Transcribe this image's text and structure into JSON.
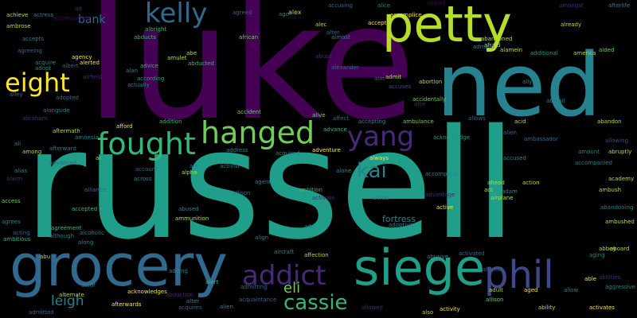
{
  "colors": {
    "background": "#000000",
    "palette": [
      "#440154",
      "#482878",
      "#3e4989",
      "#31688e",
      "#26828e",
      "#1f9e89",
      "#35b779",
      "#6ece58",
      "#b5de2b",
      "#fde725"
    ]
  },
  "words": [
    {
      "text": "luke",
      "color": "#440154"
    },
    {
      "text": "russell",
      "color": "#1f9e89"
    },
    {
      "text": "ned",
      "color": "#26828e"
    },
    {
      "text": "petty",
      "color": "#b5de2b"
    },
    {
      "text": "grocery",
      "color": "#31688e"
    },
    {
      "text": "siege",
      "color": "#1f9e89"
    },
    {
      "text": "hanged",
      "color": "#6ece58"
    },
    {
      "text": "fought",
      "color": "#35b779"
    },
    {
      "text": "kelly",
      "color": "#31688e"
    },
    {
      "text": "eight",
      "color": "#fde725"
    },
    {
      "text": "yang",
      "color": "#482878"
    },
    {
      "text": "phil",
      "color": "#3e4989"
    },
    {
      "text": "addict",
      "color": "#482878"
    },
    {
      "text": "kai",
      "color": "#26828e"
    },
    {
      "text": "cassie",
      "color": "#35b779"
    },
    {
      "text": "eli",
      "color": "#6ece58"
    },
    {
      "text": "leigh",
      "color": "#26828e"
    },
    {
      "text": "bank",
      "color": "#31688e"
    },
    {
      "text": "achieve",
      "color": "#b5de2b"
    },
    {
      "text": "actress",
      "color": "#26828e"
    },
    {
      "text": "ad",
      "color": "#482878"
    },
    {
      "text": "agreed",
      "color": "#31688e"
    },
    {
      "text": "ago",
      "color": "#26828e"
    },
    {
      "text": "alex",
      "color": "#b5de2b"
    },
    {
      "text": "accusing",
      "color": "#31688e"
    },
    {
      "text": "alice",
      "color": "#26828e"
    },
    {
      "text": "airport",
      "color": "#440154"
    },
    {
      "text": "amongst",
      "color": "#482878"
    },
    {
      "text": "afterlife",
      "color": "#26828e"
    },
    {
      "text": "ambrose",
      "color": "#b5de2b"
    },
    {
      "text": "accompanied",
      "color": "#440154"
    },
    {
      "text": "albright",
      "color": "#35b779"
    },
    {
      "text": "alec",
      "color": "#b5de2b"
    },
    {
      "text": "accomplice",
      "color": "#fde725"
    },
    {
      "text": "already",
      "color": "#b5de2b"
    },
    {
      "text": "accepts",
      "color": "#26828e"
    },
    {
      "text": "abducts",
      "color": "#35b779"
    },
    {
      "text": "african",
      "color": "#6ece58"
    },
    {
      "text": "alter",
      "color": "#31688e"
    },
    {
      "text": "accept",
      "color": "#fde725"
    },
    {
      "text": "abandoned",
      "color": "#b5de2b"
    },
    {
      "text": "afraid",
      "color": "#b5de2b"
    },
    {
      "text": "agreeing",
      "color": "#31688e"
    },
    {
      "text": "almost",
      "color": "#26828e"
    },
    {
      "text": "admiral",
      "color": "#26828e"
    },
    {
      "text": "alamein",
      "color": "#b5de2b"
    },
    {
      "text": "aided",
      "color": "#6ece58"
    },
    {
      "text": "acquire",
      "color": "#26828e"
    },
    {
      "text": "agency",
      "color": "#fde725"
    },
    {
      "text": "abe",
      "color": "#b5de2b"
    },
    {
      "text": "additional",
      "color": "#1f9e89"
    },
    {
      "text": "america",
      "color": "#b5de2b"
    },
    {
      "text": "adopt",
      "color": "#26828e"
    },
    {
      "text": "albert",
      "color": "#31688e"
    },
    {
      "text": "alerted",
      "color": "#fde725"
    },
    {
      "text": "amulet",
      "color": "#b5de2b"
    },
    {
      "text": "abuse",
      "color": "#482878"
    },
    {
      "text": "airfield",
      "color": "#482878"
    },
    {
      "text": "alan",
      "color": "#26828e"
    },
    {
      "text": "advice",
      "color": "#35b779"
    },
    {
      "text": "abducted",
      "color": "#35b779"
    },
    {
      "text": "alexander",
      "color": "#31688e"
    },
    {
      "text": "aim",
      "color": "#31688e"
    },
    {
      "text": "admit",
      "color": "#b5de2b"
    },
    {
      "text": "accuses",
      "color": "#3e4989"
    },
    {
      "text": "abortion",
      "color": "#b5de2b"
    },
    {
      "text": "ally",
      "color": "#26828e"
    },
    {
      "text": "abigail",
      "color": "#26828e"
    },
    {
      "text": "according",
      "color": "#1f9e89"
    },
    {
      "text": "actually",
      "color": "#26828e"
    },
    {
      "text": "alley",
      "color": "#31688e"
    },
    {
      "text": "adopted",
      "color": "#31688e"
    },
    {
      "text": "accidentally",
      "color": "#6ece58"
    },
    {
      "text": "allie",
      "color": "#482878"
    },
    {
      "text": "abraham",
      "color": "#482878"
    },
    {
      "text": "alongside",
      "color": "#26828e"
    },
    {
      "text": "accident",
      "color": "#6ece58"
    },
    {
      "text": "alive",
      "color": "#6ece58"
    },
    {
      "text": "affect",
      "color": "#31688e"
    },
    {
      "text": "accepting",
      "color": "#26828e"
    },
    {
      "text": "ambulance",
      "color": "#6ece58"
    },
    {
      "text": "acid",
      "color": "#b5de2b"
    },
    {
      "text": "abandon",
      "color": "#b5de2b"
    },
    {
      "text": "aftermath",
      "color": "#b5de2b"
    },
    {
      "text": "afford",
      "color": "#fde725"
    },
    {
      "text": "addition",
      "color": "#35b779"
    },
    {
      "text": "acknowledge",
      "color": "#1f9e89"
    },
    {
      "text": "allows",
      "color": "#31688e"
    },
    {
      "text": "alien",
      "color": "#31688e"
    },
    {
      "text": "among",
      "color": "#b5de2b"
    },
    {
      "text": "amnesia",
      "color": "#26828e"
    },
    {
      "text": "advance",
      "color": "#35b779"
    },
    {
      "text": "ambassador",
      "color": "#31688e"
    },
    {
      "text": "allowing",
      "color": "#3e4989"
    },
    {
      "text": "ali",
      "color": "#26828e"
    },
    {
      "text": "afterward",
      "color": "#26828e"
    },
    {
      "text": "address",
      "color": "#26828e"
    },
    {
      "text": "adventure",
      "color": "#fde725"
    },
    {
      "text": "amount",
      "color": "#26828e"
    },
    {
      "text": "abruptly",
      "color": "#b5de2b"
    },
    {
      "text": "always",
      "color": "#fde725"
    },
    {
      "text": "acquired",
      "color": "#26828e"
    },
    {
      "text": "accused",
      "color": "#26828e"
    },
    {
      "text": "advanced",
      "color": "#31688e"
    },
    {
      "text": "ai",
      "color": "#b5de2b"
    },
    {
      "text": "account",
      "color": "#31688e"
    },
    {
      "text": "activist",
      "color": "#26828e"
    },
    {
      "text": "alpha",
      "color": "#b5de2b"
    },
    {
      "text": "aid",
      "color": "#26828e"
    },
    {
      "text": "accompanied",
      "color": "#26828e"
    },
    {
      "text": "academy",
      "color": "#b5de2b"
    },
    {
      "text": "alias",
      "color": "#26828e"
    },
    {
      "text": "alone",
      "color": "#26828e"
    },
    {
      "text": "alarm",
      "color": "#482878"
    },
    {
      "text": "agent",
      "color": "#26828e"
    },
    {
      "text": "across",
      "color": "#26828e"
    },
    {
      "text": "accompany",
      "color": "#26828e"
    },
    {
      "text": "ahead",
      "color": "#b5de2b"
    },
    {
      "text": "action",
      "color": "#b5de2b"
    },
    {
      "text": "ambush",
      "color": "#b5de2b"
    },
    {
      "text": "alliance",
      "color": "#31688e"
    },
    {
      "text": "allison",
      "color": "#26828e"
    },
    {
      "text": "ambition",
      "color": "#35b779"
    },
    {
      "text": "activate",
      "color": "#482878"
    },
    {
      "text": "act",
      "color": "#b5de2b"
    },
    {
      "text": "adam",
      "color": "#26828e"
    },
    {
      "text": "abandoning",
      "color": "#26828e"
    },
    {
      "text": "access",
      "color": "#6ece58"
    },
    {
      "text": "alfred",
      "color": "#26828e"
    },
    {
      "text": "advantage",
      "color": "#482878"
    },
    {
      "text": "airplane",
      "color": "#b5de2b"
    },
    {
      "text": "accepted",
      "color": "#35b779"
    },
    {
      "text": "abused",
      "color": "#26828e"
    },
    {
      "text": "active",
      "color": "#fde725"
    },
    {
      "text": "agrees",
      "color": "#26828e"
    },
    {
      "text": "ammunition",
      "color": "#b5de2b"
    },
    {
      "text": "fortress",
      "color": "#26828e"
    },
    {
      "text": "agreement",
      "color": "#35b779"
    },
    {
      "text": "alcoholic",
      "color": "#26828e"
    },
    {
      "text": "add",
      "color": "#26828e"
    },
    {
      "text": "ambushed",
      "color": "#b5de2b"
    },
    {
      "text": "acting",
      "color": "#31688e"
    },
    {
      "text": "ambitious",
      "color": "#35b779"
    },
    {
      "text": "although",
      "color": "#26828e"
    },
    {
      "text": "align",
      "color": "#26828e"
    },
    {
      "text": "adoptive",
      "color": "#26828e"
    },
    {
      "text": "along",
      "color": "#26828e"
    },
    {
      "text": "abbey",
      "color": "#b5de2b"
    },
    {
      "text": "aboard",
      "color": "#b5de2b"
    },
    {
      "text": "abu",
      "color": "#b5de2b"
    },
    {
      "text": "aircraft",
      "color": "#26828e"
    },
    {
      "text": "affection",
      "color": "#b5de2b"
    },
    {
      "text": "activated",
      "color": "#31688e"
    },
    {
      "text": "abusive",
      "color": "#26828e"
    },
    {
      "text": "aging",
      "color": "#26828e"
    },
    {
      "text": "able",
      "color": "#fde725"
    },
    {
      "text": "abilities",
      "color": "#482878"
    },
    {
      "text": "alcohol",
      "color": "#31688e"
    },
    {
      "text": "aggressive",
      "color": "#26828e"
    },
    {
      "text": "actor",
      "color": "#26828e"
    },
    {
      "text": "acknowledges",
      "color": "#fde725"
    },
    {
      "text": "alert",
      "color": "#35b779"
    },
    {
      "text": "adding",
      "color": "#26828e"
    },
    {
      "text": "admitting",
      "color": "#31688e"
    },
    {
      "text": "adult",
      "color": "#b5de2b"
    },
    {
      "text": "aged",
      "color": "#fde725"
    },
    {
      "text": "allow",
      "color": "#26828e"
    },
    {
      "text": "alternate",
      "color": "#b5de2b"
    },
    {
      "text": "alter",
      "color": "#26828e"
    },
    {
      "text": "abduction",
      "color": "#482878"
    },
    {
      "text": "acquaintance",
      "color": "#31688e"
    },
    {
      "text": "allison",
      "color": "#6ece58"
    },
    {
      "text": "afterwards",
      "color": "#fde725"
    },
    {
      "text": "acquires",
      "color": "#31688e"
    },
    {
      "text": "alien",
      "color": "#26828e"
    },
    {
      "text": "allowed",
      "color": "#482878"
    },
    {
      "text": "also",
      "color": "#b5de2b"
    },
    {
      "text": "activity",
      "color": "#fde725"
    },
    {
      "text": "ability",
      "color": "#b5de2b"
    },
    {
      "text": "activates",
      "color": "#fde725"
    },
    {
      "text": "admitted",
      "color": "#31688e"
    }
  ]
}
